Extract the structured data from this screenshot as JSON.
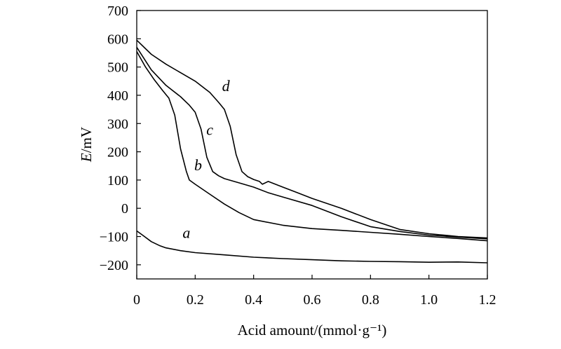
{
  "chart_data": {
    "type": "line",
    "xlabel": "Acid amount/(mmol·g⁻¹)",
    "ylabel_italic": "E",
    "ylabel_rest": "/mV",
    "xlim": [
      0,
      1.2
    ],
    "ylim": [
      -250,
      700
    ],
    "xticks": [
      "0",
      "0.2",
      "0.4",
      "0.6",
      "0.8",
      "1.0",
      "1.2"
    ],
    "yticks": [
      "−200",
      "−100",
      "0",
      "100",
      "200",
      "300",
      "400",
      "500",
      "600",
      "700"
    ],
    "grid": false,
    "legend": "none (curves labeled inline)",
    "series": [
      {
        "name": "a",
        "x": [
          0.0,
          0.02,
          0.05,
          0.08,
          0.1,
          0.15,
          0.2,
          0.3,
          0.4,
          0.5,
          0.6,
          0.7,
          0.8,
          0.9,
          1.0,
          1.1,
          1.2
        ],
        "y": [
          -80,
          -95,
          -118,
          -133,
          -140,
          -150,
          -157,
          -165,
          -173,
          -178,
          -182,
          -186,
          -188,
          -189,
          -191,
          -190,
          -193
        ]
      },
      {
        "name": "b",
        "x": [
          0.0,
          0.03,
          0.06,
          0.09,
          0.11,
          0.13,
          0.15,
          0.17,
          0.18,
          0.2,
          0.25,
          0.3,
          0.35,
          0.4,
          0.5,
          0.6,
          0.7,
          0.8,
          0.9,
          1.0,
          1.1,
          1.2
        ],
        "y": [
          555,
          500,
          455,
          415,
          390,
          330,
          210,
          130,
          100,
          85,
          50,
          15,
          -15,
          -40,
          -60,
          -72,
          -78,
          -85,
          -92,
          -100,
          -107,
          -115
        ]
      },
      {
        "name": "c",
        "x": [
          0.0,
          0.05,
          0.1,
          0.15,
          0.18,
          0.2,
          0.22,
          0.24,
          0.26,
          0.28,
          0.3,
          0.35,
          0.4,
          0.45,
          0.5,
          0.6,
          0.7,
          0.8,
          0.9,
          1.0,
          1.1,
          1.2
        ],
        "y": [
          570,
          490,
          435,
          395,
          365,
          340,
          280,
          180,
          130,
          115,
          105,
          90,
          75,
          55,
          40,
          10,
          -30,
          -65,
          -82,
          -95,
          -102,
          -108
        ]
      },
      {
        "name": "d",
        "x": [
          0.0,
          0.05,
          0.1,
          0.15,
          0.2,
          0.25,
          0.28,
          0.3,
          0.32,
          0.34,
          0.36,
          0.38,
          0.4,
          0.42,
          0.43,
          0.45,
          0.5,
          0.55,
          0.6,
          0.7,
          0.8,
          0.9,
          1.0,
          1.1,
          1.2
        ],
        "y": [
          595,
          545,
          510,
          480,
          450,
          410,
          375,
          350,
          290,
          190,
          130,
          112,
          102,
          95,
          85,
          95,
          75,
          55,
          35,
          0,
          -40,
          -75,
          -90,
          -100,
          -105
        ]
      }
    ],
    "curve_labels": [
      {
        "text": "a",
        "x": 0.17,
        "y": -105
      },
      {
        "text": "b",
        "x": 0.21,
        "y": 135
      },
      {
        "text": "c",
        "x": 0.25,
        "y": 260
      },
      {
        "text": "d",
        "x": 0.305,
        "y": 415
      }
    ]
  }
}
